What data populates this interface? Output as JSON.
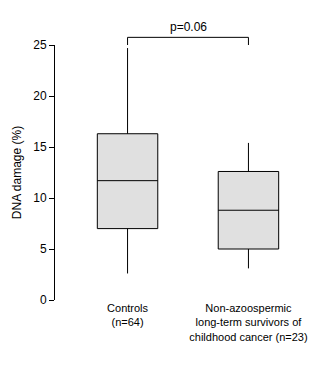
{
  "chart_data": {
    "type": "box",
    "categories": [
      "Controls\n(n=64)",
      "Non-azoospermic\nlong-term survivors of\nchildhood cancer (n=23)"
    ],
    "boxes": [
      {
        "lowerfence": 2.6,
        "q1": 7.0,
        "median": 11.7,
        "q3": 16.3,
        "upperfence": 24.7
      },
      {
        "lowerfence": 3.1,
        "q1": 5.0,
        "median": 8.8,
        "q3": 12.6,
        "upperfence": 15.4
      }
    ],
    "y_label": "DNA damage (%)",
    "annotations": [
      {
        "text": "p=0.06",
        "between": [
          0,
          1
        ]
      }
    ],
    "ylim": [
      0,
      25
    ],
    "yticks": [
      0,
      5,
      10,
      15,
      20,
      25
    ],
    "color": "#e0e0e0",
    "grid": false
  }
}
